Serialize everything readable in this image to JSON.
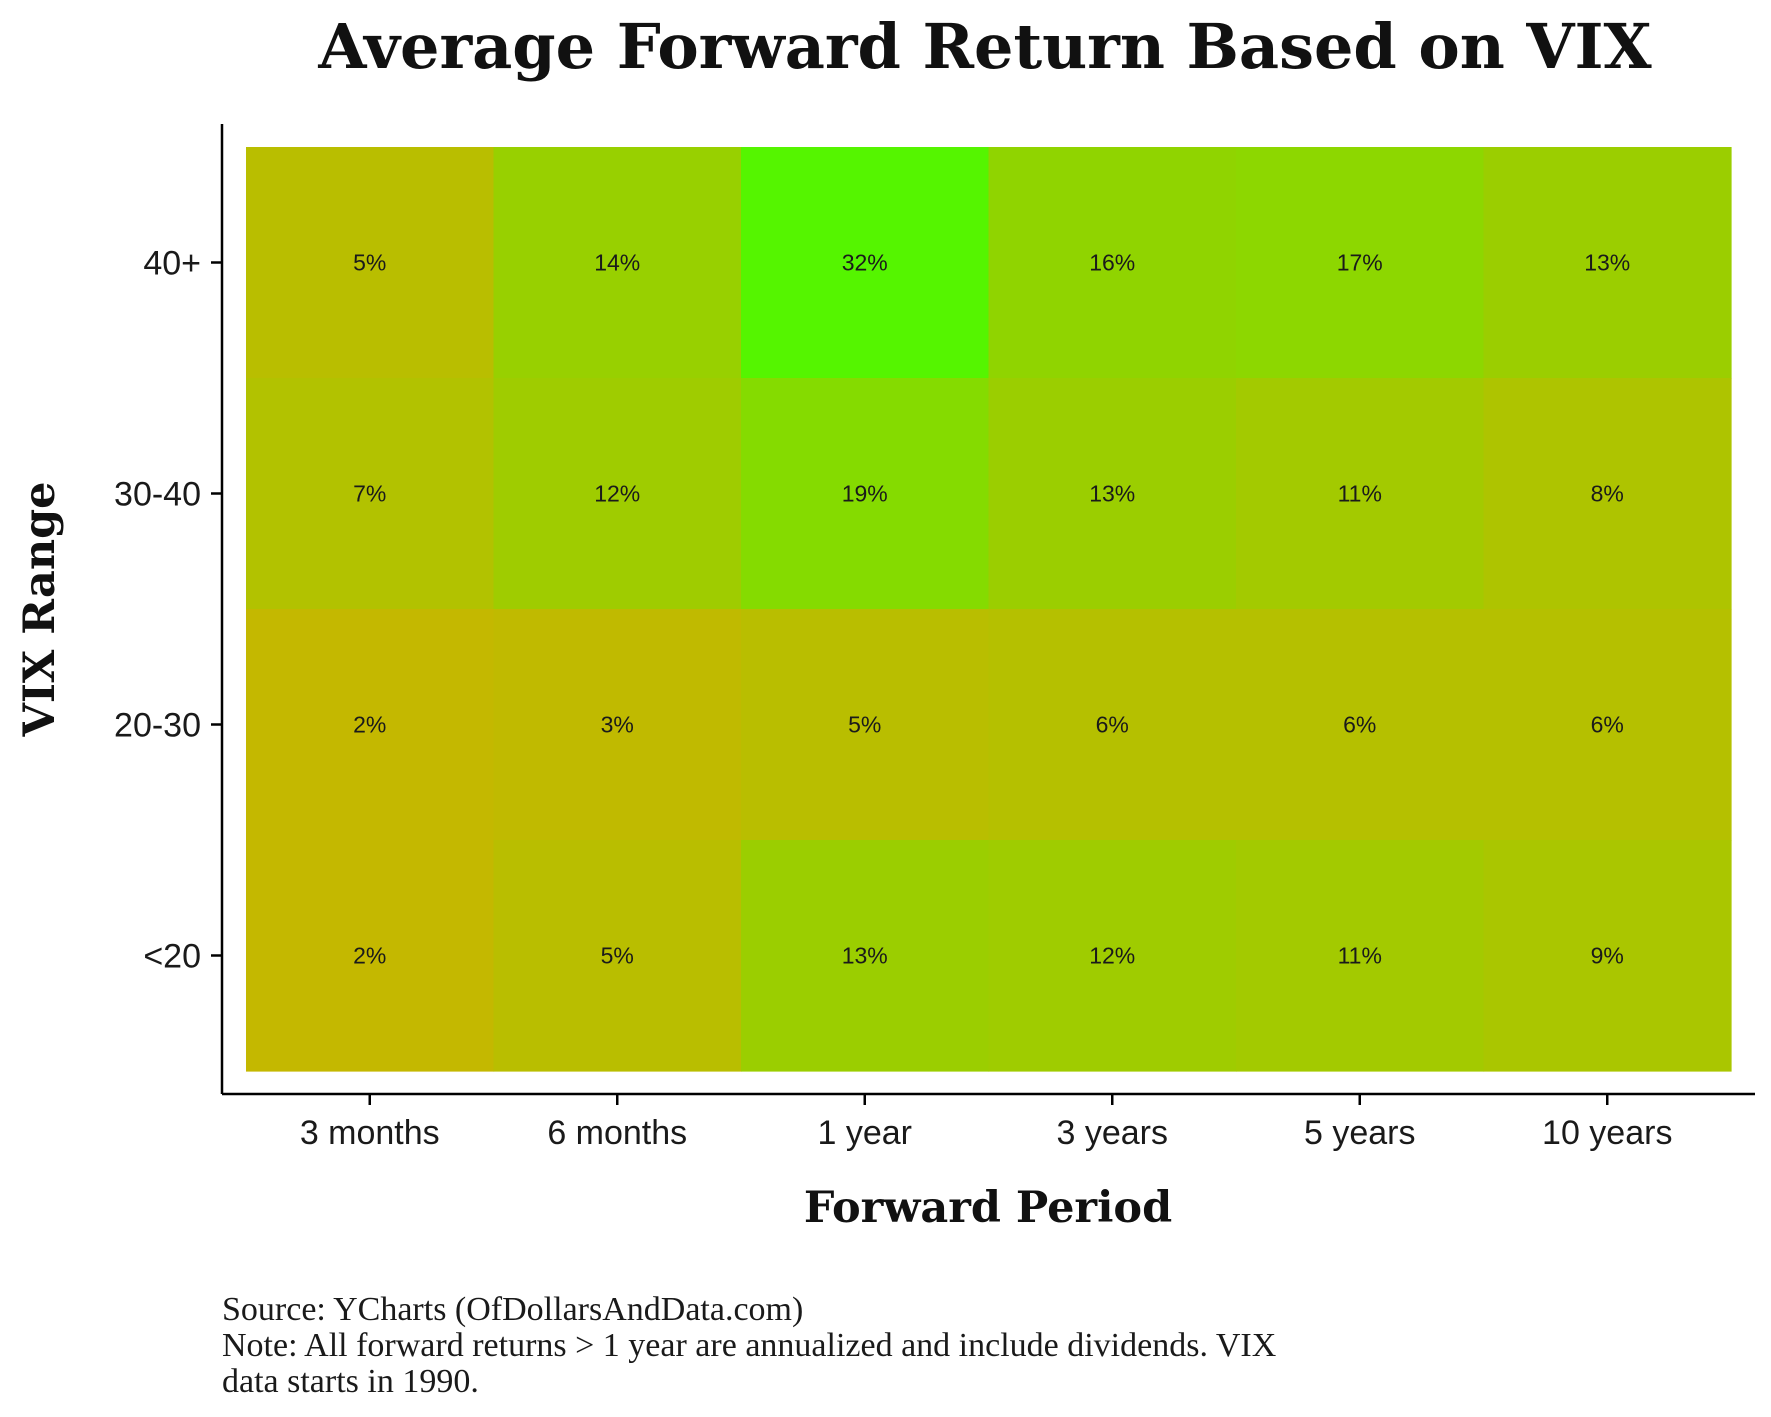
{
  "chart_data": {
    "type": "heatmap",
    "title": "Average Forward Return Based on VIX",
    "xlabel": "Forward Period",
    "ylabel": "VIX Range",
    "x_categories": [
      "3 months",
      "6 months",
      "1 year",
      "3 years",
      "5 years",
      "10 years"
    ],
    "y_categories": [
      "40+",
      "30-40",
      "20-30",
      "<20"
    ],
    "values": [
      [
        5,
        14,
        32,
        16,
        17,
        13
      ],
      [
        7,
        12,
        19,
        13,
        11,
        8
      ],
      [
        2,
        3,
        5,
        6,
        6,
        6
      ],
      [
        2,
        5,
        13,
        12,
        11,
        9
      ]
    ],
    "value_suffix": "%",
    "color_scale": {
      "low": "#c4b800",
      "high": "#55f500",
      "min": 2,
      "max": 32
    },
    "legend": "none",
    "grid": false
  },
  "footnote": {
    "source": "Source: YCharts (OfDollarsAndData.com)",
    "note_line1": "Note: All forward returns > 1 year are annualized and include dividends. VIX",
    "note_line2": "data starts in 1990."
  }
}
